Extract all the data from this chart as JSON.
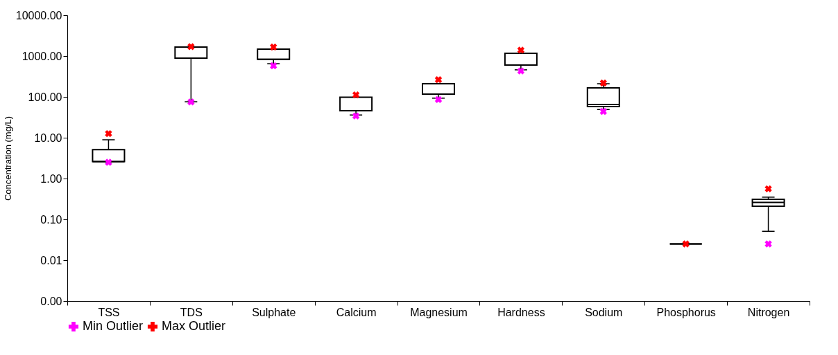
{
  "chart_data": {
    "type": "box",
    "ylabel": "Concentration (mg/L)",
    "categories": [
      "TSS",
      "TDS",
      "Sulphate",
      "Calcium",
      "Magnesium",
      "Hardness",
      "Sodium",
      "Phosphorus",
      "Nitrogen"
    ],
    "boxes": [
      {
        "low": 2.6,
        "q1": 2.6,
        "median": 2.6,
        "q3": 5.1,
        "high": 8.9
      },
      {
        "low": 76,
        "q1": 890,
        "median": 890,
        "q3": 1660,
        "high": 1660
      },
      {
        "low": 650,
        "q1": 830,
        "median": 830,
        "q3": 1480,
        "high": 1480
      },
      {
        "low": 36,
        "q1": 46,
        "median": 46,
        "q3": 98,
        "high": 98
      },
      {
        "low": 93,
        "q1": 117,
        "median": 117,
        "q3": 210,
        "high": 210
      },
      {
        "low": 460,
        "q1": 600,
        "median": 600,
        "q3": 1170,
        "high": 1170
      },
      {
        "low": 49,
        "q1": 58,
        "median": 65,
        "q3": 166,
        "high": 210
      },
      {
        "low": 0.025,
        "q1": 0.025,
        "median": 0.025,
        "q3": 0.025,
        "high": 0.025
      },
      {
        "low": 0.051,
        "q1": 0.21,
        "median": 0.26,
        "q3": 0.31,
        "high": 0.35
      }
    ],
    "series": [
      {
        "name": "Min Outlier",
        "type": "scatter",
        "color": "#ff00ff",
        "x": [
          "TSS",
          "TDS",
          "Sulphate",
          "Calcium",
          "Magnesium",
          "Hardness",
          "Sodium",
          "Phosphorus",
          "Nitrogen"
        ],
        "values": [
          2.5,
          75,
          580,
          34,
          86,
          430,
          44,
          null,
          0.025
        ]
      },
      {
        "name": "Max Outlier",
        "type": "scatter",
        "color": "#ff0000",
        "x": [
          "TSS",
          "TDS",
          "Sulphate",
          "Calcium",
          "Magnesium",
          "Hardness",
          "Sodium",
          "Phosphorus",
          "Nitrogen"
        ],
        "values": [
          12.6,
          1700,
          1660,
          112,
          264,
          1400,
          218,
          0.025,
          0.56
        ]
      }
    ],
    "ylim": [
      0.001,
      10000
    ],
    "yticks": [
      {
        "value": 10000,
        "label": "10000.00"
      },
      {
        "value": 1000,
        "label": "1000.00"
      },
      {
        "value": 100,
        "label": "100.00"
      },
      {
        "value": 10,
        "label": "10.00"
      },
      {
        "value": 1,
        "label": "1.00"
      },
      {
        "value": 0.1,
        "label": "0.10"
      },
      {
        "value": 0.01,
        "label": "0.01"
      },
      {
        "value": 0.001,
        "label": "0.00"
      }
    ],
    "color": "#000000",
    "log": true,
    "grid": false,
    "legend": "bottom",
    "marker": "cross"
  }
}
